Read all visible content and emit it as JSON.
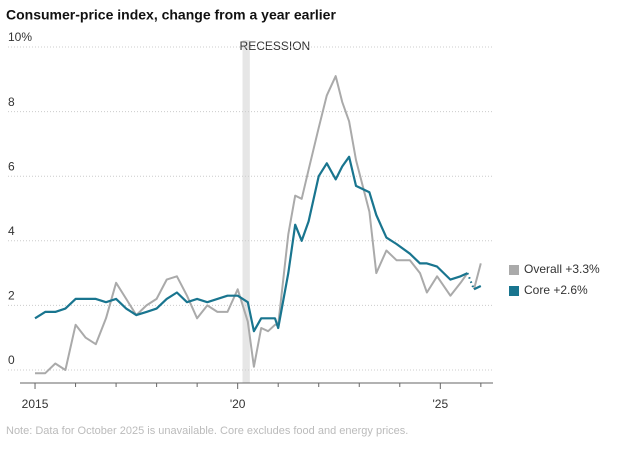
{
  "chart_data": {
    "type": "line",
    "title": "Consumer-price index, change from a year earlier",
    "note": "Note: Data for October 2025 is unavailable. Core excludes food and energy prices.",
    "recession": {
      "label": "RECESSION",
      "start": 2020.12,
      "end": 2020.3
    },
    "x": [
      2015.0,
      2015.25,
      2015.5,
      2015.75,
      2016.0,
      2016.25,
      2016.5,
      2016.75,
      2017.0,
      2017.25,
      2017.5,
      2017.75,
      2018.0,
      2018.25,
      2018.5,
      2018.75,
      2019.0,
      2019.25,
      2019.5,
      2019.75,
      2020.0,
      2020.25,
      2020.4,
      2020.58,
      2020.75,
      2020.92,
      2021.0,
      2021.25,
      2021.42,
      2021.58,
      2021.75,
      2022.0,
      2022.2,
      2022.42,
      2022.58,
      2022.75,
      2022.92,
      2023.25,
      2023.42,
      2023.67,
      2023.92,
      2024.25,
      2024.5,
      2024.67,
      2024.92,
      2025.25,
      2025.5,
      2025.67,
      2025.75,
      2025.83,
      2026.0
    ],
    "series": [
      {
        "name": "Overall +3.3%",
        "color": "#aaaaaa",
        "values": [
          -0.1,
          -0.1,
          0.2,
          0.0,
          1.4,
          1.0,
          0.8,
          1.6,
          2.7,
          2.2,
          1.7,
          2.0,
          2.2,
          2.8,
          2.9,
          2.3,
          1.6,
          2.0,
          1.8,
          1.8,
          2.5,
          1.5,
          0.1,
          1.3,
          1.2,
          1.4,
          1.4,
          4.2,
          5.4,
          5.3,
          6.2,
          7.5,
          8.5,
          9.1,
          8.3,
          7.7,
          6.5,
          4.9,
          3.0,
          3.7,
          3.4,
          3.4,
          3.0,
          2.4,
          2.9,
          2.3,
          2.7,
          3.0,
          null,
          2.5,
          3.3
        ]
      },
      {
        "name": "Core +2.6%",
        "color": "#19758f",
        "values": [
          1.6,
          1.8,
          1.8,
          1.9,
          2.2,
          2.2,
          2.2,
          2.1,
          2.2,
          1.9,
          1.7,
          1.8,
          1.9,
          2.2,
          2.4,
          2.1,
          2.2,
          2.1,
          2.2,
          2.3,
          2.3,
          2.1,
          1.2,
          1.6,
          1.6,
          1.6,
          1.3,
          3.0,
          4.5,
          4.0,
          4.6,
          6.0,
          6.4,
          5.9,
          6.3,
          6.6,
          5.7,
          5.5,
          4.8,
          4.1,
          3.9,
          3.6,
          3.3,
          3.3,
          3.2,
          2.8,
          2.9,
          3.0,
          null,
          2.5,
          2.6
        ]
      }
    ],
    "xlim": [
      2014.95,
      2026.3
    ],
    "xticks": [
      2015,
      {
        "value": 2020,
        "label": "'20"
      },
      {
        "value": 2025,
        "label": "'25"
      }
    ],
    "xticks_minor": [
      2016,
      2017,
      2018,
      2019,
      2021,
      2022,
      2023,
      2024,
      2026
    ],
    "ylim": [
      0,
      10
    ],
    "yticks": [
      0,
      2,
      4,
      6,
      8,
      {
        "value": 10,
        "label": "10%"
      }
    ],
    "grid": true
  }
}
